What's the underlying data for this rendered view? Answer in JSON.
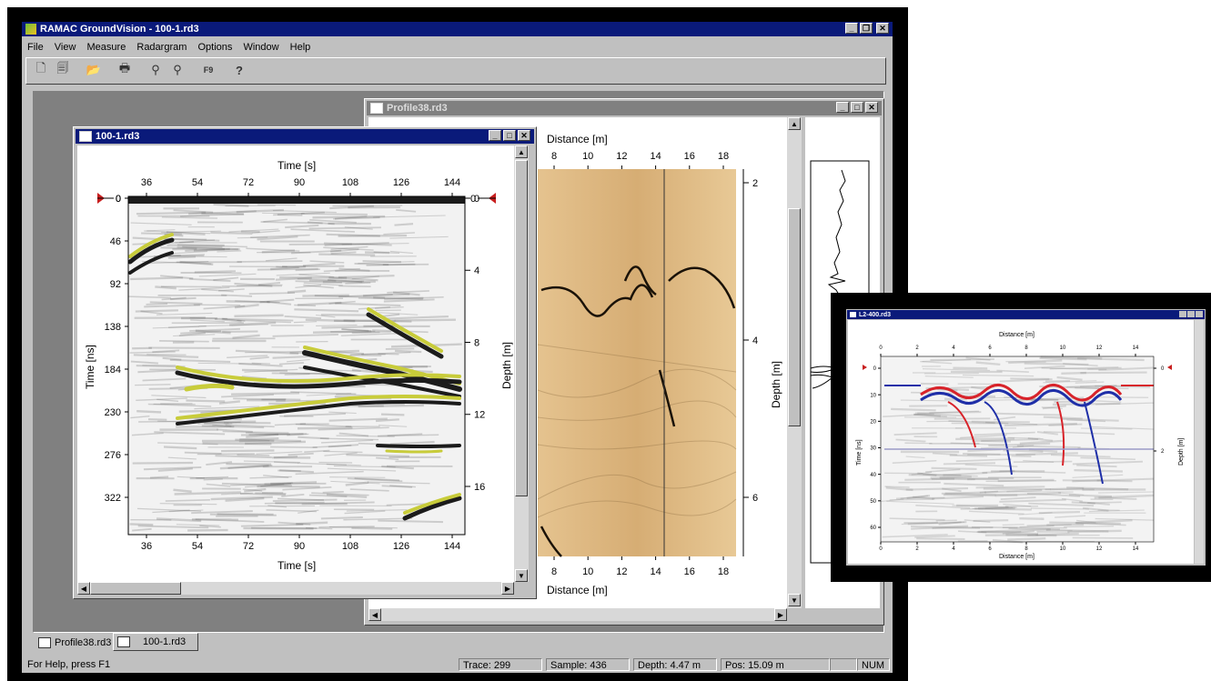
{
  "app": {
    "title": "RAMAC GroundVision - 100-1.rd3",
    "menu": [
      "File",
      "View",
      "Measure",
      "Radargram",
      "Options",
      "Window",
      "Help"
    ]
  },
  "toolbar": {
    "icons": [
      "new-icon",
      "copy-icon",
      "open-icon",
      "print-icon",
      "marker-icon",
      "marker2-icon",
      "f9-icon",
      "help-icon"
    ],
    "help_glyph": "?",
    "f9_glyph": "F9"
  },
  "win_front": {
    "title": "100-1.rd3",
    "x_label_top": "Time [s]",
    "x_label_bottom": "Time [s]",
    "y_label_left": "Time [ns]",
    "y_label_right": "Depth [m]",
    "x_ticks": [
      "36",
      "54",
      "72",
      "90",
      "108",
      "126",
      "144"
    ],
    "y_ticks_left": [
      "0",
      "46",
      "92",
      "138",
      "184",
      "230",
      "276",
      "322"
    ],
    "y_ticks_right": [
      "0",
      "4",
      "8",
      "12",
      "16"
    ],
    "marker_left": "0",
    "marker_right": "0"
  },
  "win_back": {
    "title": "Profile38.rd3",
    "x_label_top": "Distance [m]",
    "x_label_bottom": "Distance [m]",
    "y_label_right": "Depth [m]",
    "x_ticks": [
      "8",
      "10",
      "12",
      "14",
      "16",
      "18"
    ],
    "y_ticks_right": [
      "2",
      "4",
      "6"
    ]
  },
  "win_inset": {
    "title": "L2-400.rd3",
    "x_label_top": "Distance [m]",
    "x_label_bottom": "Distance [m]",
    "y_label_left": "Time [ns]",
    "y_label_right": "Depth [m]",
    "x_ticks": [
      "0",
      "2",
      "4",
      "6",
      "8",
      "10",
      "12",
      "14"
    ],
    "y_ticks_left": [
      "0",
      "10",
      "20",
      "30",
      "40",
      "50",
      "60"
    ],
    "y_ticks_right": [
      "0",
      "2"
    ]
  },
  "tabs": [
    "Profile38.rd3",
    "100-1.rd3"
  ],
  "status": {
    "help": "For Help, press F1",
    "trace": "Trace: 299",
    "sample": "Sample: 436",
    "depth": "Depth: 4.47 m",
    "pos": "Pos: 15.09 m",
    "num": "NUM"
  },
  "colors": {
    "titlebar_active": "#0a1a7a",
    "titlebar_inactive": "#808080",
    "radar_yellow": "#c8cc3a",
    "radar_tan": "#d9b27a",
    "inset_red": "#d8232a",
    "inset_blue": "#1f2fa8"
  }
}
